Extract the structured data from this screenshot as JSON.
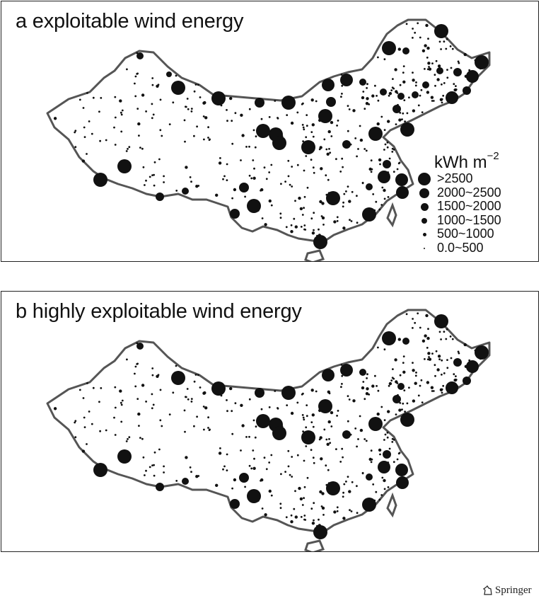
{
  "panels": [
    {
      "id": "a",
      "title": "a exploitable wind energy"
    },
    {
      "id": "b",
      "title": "b highly exploitable wind energy"
    }
  ],
  "legend": {
    "unit_base": "kWh m",
    "unit_exp": "−2",
    "classes": [
      {
        "label": ">2500"
      },
      {
        "label": "2000~2500"
      },
      {
        "label": "1500~2000"
      },
      {
        "label": "1000~1500"
      },
      {
        "label": "500~1000"
      },
      {
        "label": "0.0~500"
      }
    ]
  },
  "publisher": "Springer",
  "colors": {
    "dots": "#111111",
    "outline": "#555555",
    "frame": "#222222"
  }
}
